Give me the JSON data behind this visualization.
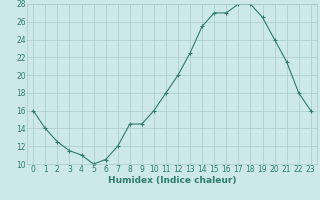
{
  "x": [
    0,
    1,
    2,
    3,
    4,
    5,
    6,
    7,
    8,
    9,
    10,
    11,
    12,
    13,
    14,
    15,
    16,
    17,
    18,
    19,
    20,
    21,
    22,
    23
  ],
  "y": [
    16,
    14,
    12.5,
    11.5,
    11,
    10,
    10.5,
    12,
    14.5,
    14.5,
    16,
    18,
    20,
    22.5,
    25.5,
    27,
    27,
    28,
    28,
    26.5,
    24,
    21.5,
    18,
    16
  ],
  "line_color": "#2e7d6e",
  "marker": "+",
  "bg_color": "#cce8e8",
  "grid_color": "#aacccc",
  "xlabel": "Humidex (Indice chaleur)",
  "ylim": [
    10,
    28
  ],
  "yticks": [
    10,
    12,
    14,
    16,
    18,
    20,
    22,
    24,
    26,
    28
  ],
  "xticks": [
    0,
    1,
    2,
    3,
    4,
    5,
    6,
    7,
    8,
    9,
    10,
    11,
    12,
    13,
    14,
    15,
    16,
    17,
    18,
    19,
    20,
    21,
    22,
    23
  ],
  "tick_fontsize": 5.5,
  "xlabel_fontsize": 6.5
}
